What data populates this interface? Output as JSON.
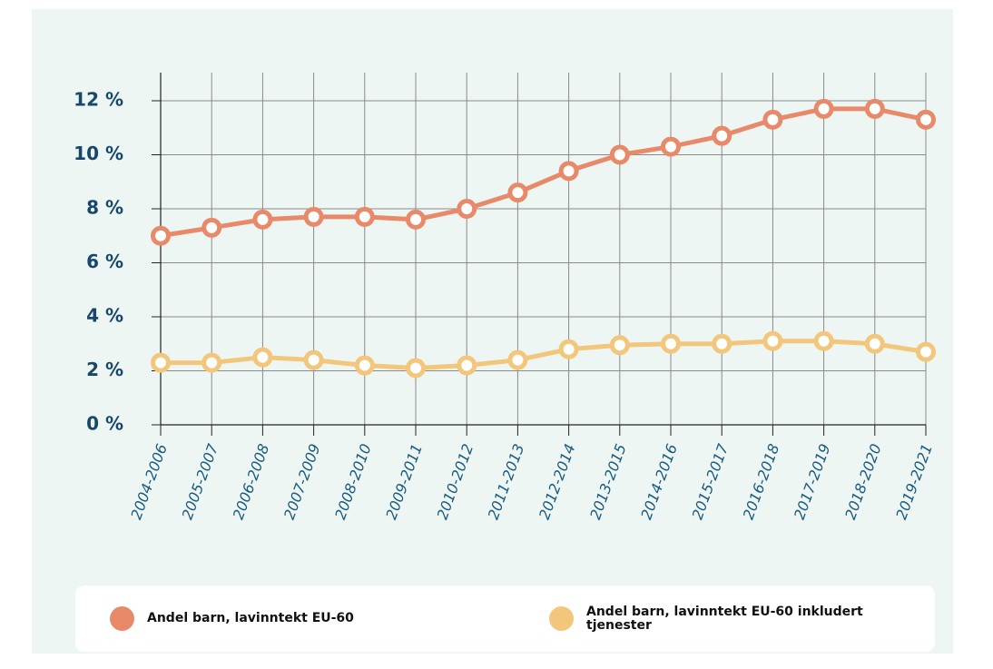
{
  "chart_data": {
    "type": "line",
    "categories": [
      "2004-2006",
      "2005-2007",
      "2006-2008",
      "2007-2009",
      "2008-2010",
      "2009-2011",
      "2010-2012",
      "2011-2013",
      "2012-2014",
      "2013-2015",
      "2014-2016",
      "2015-2017",
      "2016-2018",
      "2017-2019",
      "2018-2020",
      "2019-2021"
    ],
    "series": [
      {
        "name": "Andel barn, lavinntekt EU-60",
        "color": "#e8896a",
        "values": [
          7.0,
          7.3,
          7.6,
          7.7,
          7.7,
          7.6,
          8.0,
          8.6,
          9.4,
          10.0,
          10.3,
          10.7,
          11.3,
          11.7,
          11.7,
          11.3
        ]
      },
      {
        "name": "Andel barn, lavinntekt EU-60 inkludert tjenester",
        "color": "#f2c67b",
        "values": [
          2.3,
          2.3,
          2.5,
          2.4,
          2.2,
          2.1,
          2.2,
          2.4,
          2.8,
          2.95,
          3.0,
          3.0,
          3.1,
          3.1,
          3.0,
          2.7
        ]
      }
    ],
    "ylim": [
      0,
      12
    ],
    "yticks": [
      {
        "value": 0,
        "label": "0 %"
      },
      {
        "value": 2,
        "label": "2 %"
      },
      {
        "value": 4,
        "label": "4 %"
      },
      {
        "value": 6,
        "label": "6 %"
      },
      {
        "value": 8,
        "label": "8 %"
      },
      {
        "value": 10,
        "label": "10 %"
      },
      {
        "value": 12,
        "label": "12 %"
      }
    ],
    "grid": true
  }
}
